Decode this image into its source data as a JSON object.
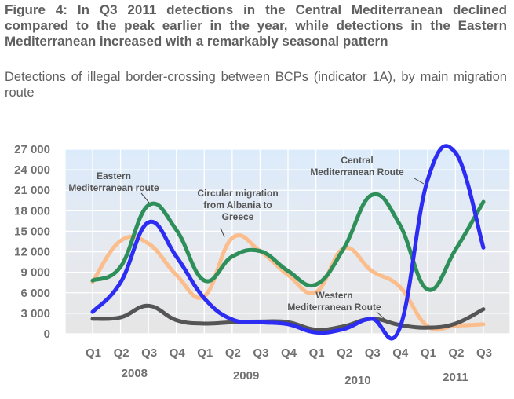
{
  "figure": {
    "title": "Figure 4: In Q3 2011 detections in the Central Mediterranean declined compared to the peak earlier in the year, while detections in the Eastern Mediterranean increased with a remarkably seasonal pattern",
    "subtitle": "Detections of illegal border-crossing between BCPs (indicator 1A), by main migration route"
  },
  "chart_data": {
    "type": "line",
    "title": "Detections of illegal border-crossing between BCPs (indicator 1A), by main migration route",
    "xlabel": "",
    "ylabel": "",
    "ylim": [
      0,
      27000
    ],
    "yticks": [
      0,
      3000,
      6000,
      9000,
      12000,
      15000,
      18000,
      21000,
      24000,
      27000
    ],
    "ytick_labels": [
      "0",
      "3 000",
      "6 000",
      "9 000",
      "12 000",
      "15 000",
      "18 000",
      "21 000",
      "24 000",
      "27 000"
    ],
    "categories": [
      "Q1",
      "Q2",
      "Q3",
      "Q4",
      "Q1",
      "Q2",
      "Q3",
      "Q4",
      "Q1",
      "Q2",
      "Q3",
      "Q4",
      "Q1",
      "Q2",
      "Q3"
    ],
    "years": [
      {
        "label": "2008",
        "start": 0,
        "end": 3
      },
      {
        "label": "2009",
        "start": 4,
        "end": 7
      },
      {
        "label": "2010",
        "start": 8,
        "end": 11
      },
      {
        "label": "2011",
        "start": 12,
        "end": 14
      }
    ],
    "grid": true,
    "legend": "none (inline annotations)",
    "series": [
      {
        "name": "Eastern Mediterranean route",
        "color": "#2e8f5a",
        "values": [
          7800,
          9800,
          18800,
          15200,
          7800,
          11300,
          12100,
          9200,
          7200,
          12500,
          20300,
          16000,
          6500,
          12300,
          19300
        ]
      },
      {
        "name": "Circular migration from Albania to Greece",
        "color": "#fbbd8c",
        "values": [
          7600,
          13600,
          13200,
          8600,
          5500,
          14000,
          12100,
          8600,
          6100,
          12500,
          9200,
          6900,
          1100,
          1200,
          1400
        ]
      },
      {
        "name": "Central Mediterranean Route",
        "color": "#2c2cf2",
        "values": [
          3200,
          7500,
          16300,
          11300,
          5200,
          2100,
          1700,
          1400,
          200,
          700,
          2200,
          800,
          22500,
          26500,
          12600
        ]
      },
      {
        "name": "Western Mediterranean Route",
        "color": "#555555",
        "values": [
          2200,
          2400,
          4100,
          2000,
          1500,
          1700,
          1800,
          1700,
          600,
          1100,
          2200,
          1300,
          900,
          1500,
          3600
        ]
      }
    ],
    "annotations": [
      {
        "series": "Eastern Mediterranean route",
        "lines": [
          "Eastern",
          "Mediterranean route"
        ]
      },
      {
        "series": "Circular migration from Albania to Greece",
        "lines": [
          "Circular migration",
          "from Albania to",
          "Greece"
        ]
      },
      {
        "series": "Central Mediterranean Route",
        "lines": [
          "Central",
          "Mediterranean Route"
        ]
      },
      {
        "series": "Western Mediterranean Route",
        "lines": [
          "Western",
          "Mediterranean Route"
        ]
      }
    ]
  }
}
